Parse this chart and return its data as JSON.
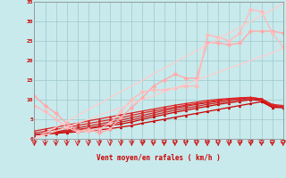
{
  "xlabel": "Vent moyen/en rafales ( km/h )",
  "xlim": [
    0,
    23
  ],
  "ylim": [
    0,
    35
  ],
  "yticks": [
    0,
    5,
    10,
    15,
    20,
    25,
    30,
    35
  ],
  "xticks": [
    0,
    1,
    2,
    3,
    4,
    5,
    6,
    7,
    8,
    9,
    10,
    11,
    12,
    13,
    14,
    15,
    16,
    17,
    18,
    19,
    20,
    21,
    22,
    23
  ],
  "bg_color": "#c8eaec",
  "grid_color": "#9ec8cc",
  "series": [
    {
      "x": [
        0,
        1,
        2,
        3,
        4,
        5,
        6,
        7,
        8,
        9,
        10,
        11,
        12,
        13,
        14,
        15,
        16,
        17,
        18,
        19,
        20,
        21,
        22,
        23
      ],
      "y": [
        1.0,
        1.2,
        1.4,
        1.6,
        1.8,
        2.0,
        2.3,
        2.6,
        3.0,
        3.4,
        4.0,
        4.5,
        5.0,
        5.5,
        6.0,
        6.5,
        7.0,
        7.5,
        8.0,
        8.5,
        9.0,
        9.5,
        8.0,
        8.0
      ],
      "color": "#cc0000",
      "lw": 0.9,
      "marker": "^",
      "ms": 2.0,
      "alpha": 1.0
    },
    {
      "x": [
        0,
        1,
        2,
        3,
        4,
        5,
        6,
        7,
        8,
        9,
        10,
        11,
        12,
        13,
        14,
        15,
        16,
        17,
        18,
        19,
        20,
        21,
        22,
        23
      ],
      "y": [
        1.0,
        1.3,
        1.6,
        1.9,
        2.2,
        2.6,
        3.0,
        3.4,
        3.8,
        4.3,
        5.0,
        5.6,
        6.2,
        6.8,
        7.3,
        7.8,
        8.3,
        8.8,
        9.2,
        9.6,
        10.0,
        9.8,
        8.2,
        8.0
      ],
      "color": "#cc0000",
      "lw": 0.9,
      "marker": "^",
      "ms": 2.0,
      "alpha": 1.0
    },
    {
      "x": [
        0,
        1,
        2,
        3,
        4,
        5,
        6,
        7,
        8,
        9,
        10,
        11,
        12,
        13,
        14,
        15,
        16,
        17,
        18,
        19,
        20,
        21,
        22,
        23
      ],
      "y": [
        1.0,
        1.3,
        1.6,
        2.0,
        2.4,
        2.8,
        3.3,
        3.8,
        4.3,
        4.8,
        5.5,
        6.1,
        6.7,
        7.3,
        7.8,
        8.3,
        8.8,
        9.2,
        9.6,
        10.0,
        10.3,
        10.0,
        8.3,
        8.0
      ],
      "color": "#cc2222",
      "lw": 0.9,
      "marker": "^",
      "ms": 2.0,
      "alpha": 1.0
    },
    {
      "x": [
        0,
        1,
        2,
        3,
        4,
        5,
        6,
        7,
        8,
        9,
        10,
        11,
        12,
        13,
        14,
        15,
        16,
        17,
        18,
        19,
        20,
        21,
        22,
        23
      ],
      "y": [
        1.0,
        1.4,
        1.8,
        2.3,
        2.8,
        3.3,
        3.8,
        4.3,
        4.8,
        5.4,
        6.0,
        6.6,
        7.2,
        7.8,
        8.3,
        8.8,
        9.2,
        9.6,
        10.0,
        10.3,
        10.5,
        10.2,
        8.5,
        8.1
      ],
      "color": "#cc2222",
      "lw": 0.9,
      "marker": "^",
      "ms": 2.0,
      "alpha": 1.0
    },
    {
      "x": [
        0,
        1,
        2,
        3,
        4,
        5,
        6,
        7,
        8,
        9,
        10,
        11,
        12,
        13,
        14,
        15,
        16,
        17,
        18,
        19,
        20,
        21,
        22,
        23
      ],
      "y": [
        1.5,
        1.9,
        2.4,
        2.9,
        3.4,
        3.9,
        4.4,
        4.9,
        5.4,
        6.0,
        6.6,
        7.1,
        7.6,
        8.1,
        8.6,
        9.0,
        9.4,
        9.8,
        10.1,
        10.3,
        10.5,
        10.2,
        8.6,
        8.2
      ],
      "color": "#dd2222",
      "lw": 0.9,
      "marker": "^",
      "ms": 2.0,
      "alpha": 1.0
    },
    {
      "x": [
        0,
        1,
        2,
        3,
        4,
        5,
        6,
        7,
        8,
        9,
        10,
        11,
        12,
        13,
        14,
        15,
        16,
        17,
        18,
        19,
        20,
        21,
        22,
        23
      ],
      "y": [
        2.0,
        2.5,
        3.0,
        3.5,
        4.0,
        4.6,
        5.1,
        5.6,
        6.1,
        6.6,
        7.1,
        7.6,
        8.1,
        8.6,
        9.0,
        9.4,
        9.8,
        10.1,
        10.3,
        10.5,
        10.6,
        10.2,
        8.8,
        8.5
      ],
      "color": "#dd2222",
      "lw": 0.9,
      "marker": "^",
      "ms": 2.0,
      "alpha": 1.0
    },
    {
      "x": [
        0,
        1,
        2,
        3,
        4,
        5,
        6,
        7,
        8,
        9,
        10,
        11,
        12,
        13,
        14,
        15,
        16,
        17,
        18,
        19,
        20,
        21,
        22,
        23
      ],
      "y": [
        11.0,
        8.5,
        6.5,
        4.0,
        2.0,
        2.5,
        1.5,
        2.5,
        5.5,
        8.0,
        10.5,
        13.5,
        15.0,
        16.5,
        15.5,
        15.5,
        24.5,
        24.5,
        24.0,
        24.5,
        27.5,
        27.5,
        27.5,
        27.0
      ],
      "color": "#ffaaaa",
      "lw": 1.0,
      "marker": "D",
      "ms": 2.5,
      "alpha": 1.0
    },
    {
      "x": [
        0,
        1,
        2,
        3,
        4,
        5,
        6,
        7,
        8,
        9,
        10,
        11,
        12,
        13,
        14,
        15,
        16,
        17,
        18,
        19,
        20,
        21,
        22,
        23
      ],
      "y": [
        8.5,
        7.0,
        5.0,
        3.0,
        1.8,
        2.0,
        2.5,
        4.0,
        7.0,
        10.0,
        12.0,
        12.5,
        12.5,
        13.0,
        13.5,
        13.5,
        26.5,
        26.0,
        25.0,
        27.0,
        33.0,
        32.5,
        27.0,
        23.5
      ],
      "color": "#ffbbbb",
      "lw": 1.0,
      "marker": "D",
      "ms": 2.5,
      "alpha": 1.0
    },
    {
      "x": [
        0,
        23
      ],
      "y": [
        0,
        23
      ],
      "color": "#ffcccc",
      "lw": 0.9,
      "marker": null,
      "ms": 0,
      "alpha": 1.0
    },
    {
      "x": [
        0,
        23
      ],
      "y": [
        0,
        34.5
      ],
      "color": "#ffcccc",
      "lw": 0.9,
      "marker": null,
      "ms": 0,
      "alpha": 1.0
    }
  ]
}
